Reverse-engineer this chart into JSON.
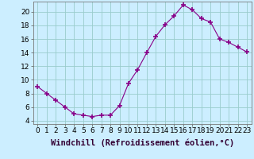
{
  "x": [
    0,
    1,
    2,
    3,
    4,
    5,
    6,
    7,
    8,
    9,
    10,
    11,
    12,
    13,
    14,
    15,
    16,
    17,
    18,
    19,
    20,
    21,
    22,
    23
  ],
  "y": [
    9.0,
    8.0,
    7.0,
    6.0,
    5.0,
    4.8,
    4.6,
    4.8,
    4.8,
    6.2,
    9.5,
    11.5,
    14.0,
    16.4,
    18.1,
    19.4,
    21.0,
    20.3,
    19.0,
    18.5,
    16.0,
    15.5,
    14.8,
    14.1
  ],
  "line_color": "#880088",
  "marker": "+",
  "marker_size": 4,
  "marker_lw": 1.2,
  "bg_color": "#cceeff",
  "grid_color": "#99cccc",
  "xlabel": "Windchill (Refroidissement éolien,°C)",
  "xlabel_fontsize": 7.5,
  "tick_label_fontsize": 6.5,
  "ylim": [
    3.5,
    21.5
  ],
  "xlim": [
    -0.5,
    23.5
  ],
  "yticks": [
    4,
    6,
    8,
    10,
    12,
    14,
    16,
    18,
    20
  ],
  "xticks": [
    0,
    1,
    2,
    3,
    4,
    5,
    6,
    7,
    8,
    9,
    10,
    11,
    12,
    13,
    14,
    15,
    16,
    17,
    18,
    19,
    20,
    21,
    22,
    23
  ]
}
